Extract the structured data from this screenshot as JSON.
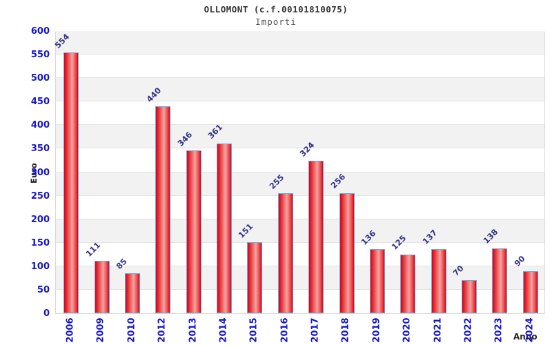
{
  "chart_data": {
    "type": "bar",
    "title": "OLLOMONT (c.f.00101810075)",
    "subtitle": "Importi",
    "xlabel": "Anno",
    "ylabel": "Euro",
    "categories": [
      "2006",
      "2009",
      "2010",
      "2012",
      "2013",
      "2014",
      "2015",
      "2016",
      "2017",
      "2018",
      "2019",
      "2020",
      "2021",
      "2022",
      "2023",
      "2024"
    ],
    "values": [
      554,
      111,
      85,
      440,
      346,
      361,
      151,
      255,
      324,
      256,
      136,
      125,
      137,
      70,
      138,
      90
    ],
    "ylim": [
      0,
      600
    ],
    "ytick_step": 50,
    "grid": "horizontal-bands-alternating",
    "legend": "none",
    "colors": {
      "tick_label_blue": "#1414cc",
      "value_label_navy": "#333388",
      "bar_edge_red": "#d6001a",
      "bar_mid_red": "#e83a3a",
      "bar_light_pink": "#f5a3a3",
      "bar_border_blue": "#6fa9dc",
      "band_gray": "#f2f2f2",
      "gridline_gray": "#e3e3e3",
      "plot_border_gray": "#d9d9d9",
      "title_color": "#333333",
      "subtitle_color": "#555555",
      "axis_title_color": "#222222"
    }
  }
}
